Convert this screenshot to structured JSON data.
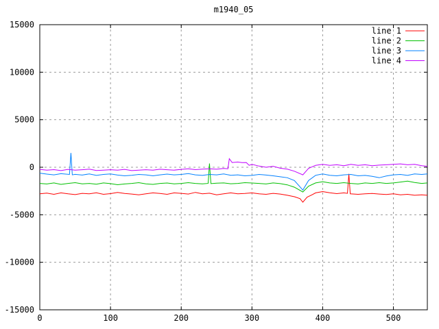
{
  "title": "m1940_05",
  "chart_data": {
    "type": "line",
    "title": "m1940_05",
    "xlabel": "",
    "ylabel": "",
    "xlim": [
      0,
      548
    ],
    "ylim": [
      -15000,
      15000
    ],
    "xticks": [
      0,
      100,
      200,
      300,
      400,
      500
    ],
    "yticks": [
      -15000,
      -10000,
      -5000,
      0,
      5000,
      10000,
      15000
    ],
    "grid": true,
    "legend_position": "top-right-inside",
    "colors": {
      "background": "#ffffff",
      "frame": "#000000",
      "grid": "#999999",
      "text": "#000000"
    },
    "series": [
      {
        "name": "line 1",
        "color": "#ff0000",
        "points": [
          [
            0,
            -2800
          ],
          [
            10,
            -2720
          ],
          [
            20,
            -2850
          ],
          [
            30,
            -2700
          ],
          [
            40,
            -2800
          ],
          [
            50,
            -2880
          ],
          [
            60,
            -2750
          ],
          [
            70,
            -2800
          ],
          [
            80,
            -2680
          ],
          [
            90,
            -2850
          ],
          [
            100,
            -2780
          ],
          [
            110,
            -2650
          ],
          [
            120,
            -2760
          ],
          [
            130,
            -2820
          ],
          [
            140,
            -2900
          ],
          [
            150,
            -2800
          ],
          [
            160,
            -2700
          ],
          [
            170,
            -2760
          ],
          [
            180,
            -2850
          ],
          [
            190,
            -2700
          ],
          [
            200,
            -2750
          ],
          [
            210,
            -2820
          ],
          [
            220,
            -2650
          ],
          [
            230,
            -2800
          ],
          [
            240,
            -2730
          ],
          [
            250,
            -2900
          ],
          [
            260,
            -2800
          ],
          [
            270,
            -2700
          ],
          [
            280,
            -2800
          ],
          [
            290,
            -2760
          ],
          [
            300,
            -2700
          ],
          [
            310,
            -2800
          ],
          [
            320,
            -2850
          ],
          [
            330,
            -2750
          ],
          [
            340,
            -2820
          ],
          [
            350,
            -2950
          ],
          [
            360,
            -3100
          ],
          [
            368,
            -3300
          ],
          [
            372,
            -3680
          ],
          [
            378,
            -3150
          ],
          [
            385,
            -2900
          ],
          [
            390,
            -2700
          ],
          [
            400,
            -2560
          ],
          [
            410,
            -2680
          ],
          [
            420,
            -2780
          ],
          [
            430,
            -2700
          ],
          [
            435,
            -2750
          ],
          [
            437,
            -700
          ],
          [
            439,
            -2800
          ],
          [
            450,
            -2850
          ],
          [
            460,
            -2800
          ],
          [
            470,
            -2760
          ],
          [
            480,
            -2820
          ],
          [
            490,
            -2870
          ],
          [
            500,
            -2800
          ],
          [
            510,
            -2900
          ],
          [
            520,
            -2850
          ],
          [
            530,
            -2950
          ],
          [
            540,
            -2900
          ],
          [
            548,
            -2950
          ]
        ]
      },
      {
        "name": "line 2",
        "color": "#00c000",
        "points": [
          [
            0,
            -1700
          ],
          [
            10,
            -1760
          ],
          [
            20,
            -1650
          ],
          [
            30,
            -1800
          ],
          [
            40,
            -1700
          ],
          [
            50,
            -1620
          ],
          [
            60,
            -1750
          ],
          [
            70,
            -1700
          ],
          [
            80,
            -1790
          ],
          [
            90,
            -1650
          ],
          [
            100,
            -1720
          ],
          [
            110,
            -1840
          ],
          [
            120,
            -1760
          ],
          [
            130,
            -1700
          ],
          [
            140,
            -1620
          ],
          [
            150,
            -1750
          ],
          [
            160,
            -1800
          ],
          [
            170,
            -1700
          ],
          [
            180,
            -1660
          ],
          [
            190,
            -1750
          ],
          [
            200,
            -1700
          ],
          [
            210,
            -1620
          ],
          [
            220,
            -1700
          ],
          [
            230,
            -1750
          ],
          [
            238,
            -1700
          ],
          [
            240,
            400
          ],
          [
            242,
            -1720
          ],
          [
            250,
            -1680
          ],
          [
            260,
            -1650
          ],
          [
            270,
            -1740
          ],
          [
            280,
            -1700
          ],
          [
            290,
            -1620
          ],
          [
            300,
            -1660
          ],
          [
            310,
            -1700
          ],
          [
            320,
            -1760
          ],
          [
            330,
            -1650
          ],
          [
            340,
            -1720
          ],
          [
            350,
            -1850
          ],
          [
            360,
            -2100
          ],
          [
            372,
            -2600
          ],
          [
            380,
            -2000
          ],
          [
            390,
            -1650
          ],
          [
            400,
            -1520
          ],
          [
            410,
            -1650
          ],
          [
            420,
            -1700
          ],
          [
            430,
            -1620
          ],
          [
            440,
            -1700
          ],
          [
            450,
            -1760
          ],
          [
            460,
            -1650
          ],
          [
            470,
            -1700
          ],
          [
            480,
            -1620
          ],
          [
            490,
            -1700
          ],
          [
            500,
            -1650
          ],
          [
            510,
            -1560
          ],
          [
            520,
            -1460
          ],
          [
            530,
            -1600
          ],
          [
            540,
            -1700
          ],
          [
            548,
            -1650
          ]
        ]
      },
      {
        "name": "line 3",
        "color": "#0080ff",
        "points": [
          [
            0,
            -620
          ],
          [
            10,
            -720
          ],
          [
            20,
            -800
          ],
          [
            30,
            -680
          ],
          [
            42,
            -760
          ],
          [
            44,
            1500
          ],
          [
            46,
            -800
          ],
          [
            50,
            -750
          ],
          [
            60,
            -820
          ],
          [
            70,
            -700
          ],
          [
            80,
            -860
          ],
          [
            90,
            -760
          ],
          [
            100,
            -700
          ],
          [
            110,
            -820
          ],
          [
            120,
            -900
          ],
          [
            130,
            -850
          ],
          [
            140,
            -760
          ],
          [
            150,
            -800
          ],
          [
            160,
            -900
          ],
          [
            170,
            -800
          ],
          [
            180,
            -720
          ],
          [
            190,
            -800
          ],
          [
            200,
            -760
          ],
          [
            210,
            -660
          ],
          [
            220,
            -800
          ],
          [
            230,
            -860
          ],
          [
            240,
            -760
          ],
          [
            250,
            -800
          ],
          [
            260,
            -700
          ],
          [
            270,
            -850
          ],
          [
            280,
            -800
          ],
          [
            290,
            -900
          ],
          [
            300,
            -860
          ],
          [
            310,
            -760
          ],
          [
            320,
            -820
          ],
          [
            330,
            -900
          ],
          [
            340,
            -1000
          ],
          [
            350,
            -1100
          ],
          [
            360,
            -1400
          ],
          [
            372,
            -2400
          ],
          [
            380,
            -1400
          ],
          [
            390,
            -850
          ],
          [
            400,
            -700
          ],
          [
            410,
            -850
          ],
          [
            420,
            -900
          ],
          [
            430,
            -800
          ],
          [
            440,
            -760
          ],
          [
            450,
            -900
          ],
          [
            460,
            -860
          ],
          [
            470,
            -960
          ],
          [
            480,
            -1100
          ],
          [
            490,
            -920
          ],
          [
            500,
            -800
          ],
          [
            510,
            -760
          ],
          [
            520,
            -860
          ],
          [
            530,
            -700
          ],
          [
            540,
            -760
          ],
          [
            548,
            -700
          ]
        ]
      },
      {
        "name": "line 4",
        "color": "#c000ff",
        "points": [
          [
            0,
            -220
          ],
          [
            10,
            -300
          ],
          [
            20,
            -250
          ],
          [
            30,
            -350
          ],
          [
            40,
            -220
          ],
          [
            50,
            -300
          ],
          [
            60,
            -260
          ],
          [
            70,
            -200
          ],
          [
            80,
            -340
          ],
          [
            90,
            -300
          ],
          [
            100,
            -260
          ],
          [
            110,
            -300
          ],
          [
            120,
            -220
          ],
          [
            130,
            -350
          ],
          [
            140,
            -300
          ],
          [
            150,
            -260
          ],
          [
            160,
            -300
          ],
          [
            170,
            -210
          ],
          [
            180,
            -260
          ],
          [
            190,
            -300
          ],
          [
            200,
            -220
          ],
          [
            210,
            -160
          ],
          [
            220,
            -250
          ],
          [
            230,
            -200
          ],
          [
            240,
            -160
          ],
          [
            250,
            -210
          ],
          [
            260,
            -120
          ],
          [
            266,
            -160
          ],
          [
            268,
            900
          ],
          [
            272,
            500
          ],
          [
            280,
            550
          ],
          [
            286,
            480
          ],
          [
            292,
            500
          ],
          [
            296,
            200
          ],
          [
            300,
            300
          ],
          [
            310,
            120
          ],
          [
            320,
            0
          ],
          [
            330,
            100
          ],
          [
            340,
            -100
          ],
          [
            350,
            -200
          ],
          [
            360,
            -420
          ],
          [
            372,
            -800
          ],
          [
            380,
            -120
          ],
          [
            390,
            200
          ],
          [
            400,
            300
          ],
          [
            410,
            200
          ],
          [
            420,
            260
          ],
          [
            430,
            160
          ],
          [
            440,
            300
          ],
          [
            450,
            200
          ],
          [
            460,
            260
          ],
          [
            470,
            160
          ],
          [
            480,
            220
          ],
          [
            490,
            260
          ],
          [
            500,
            300
          ],
          [
            510,
            350
          ],
          [
            520,
            260
          ],
          [
            530,
            300
          ],
          [
            540,
            160
          ],
          [
            548,
            100
          ]
        ]
      }
    ]
  }
}
